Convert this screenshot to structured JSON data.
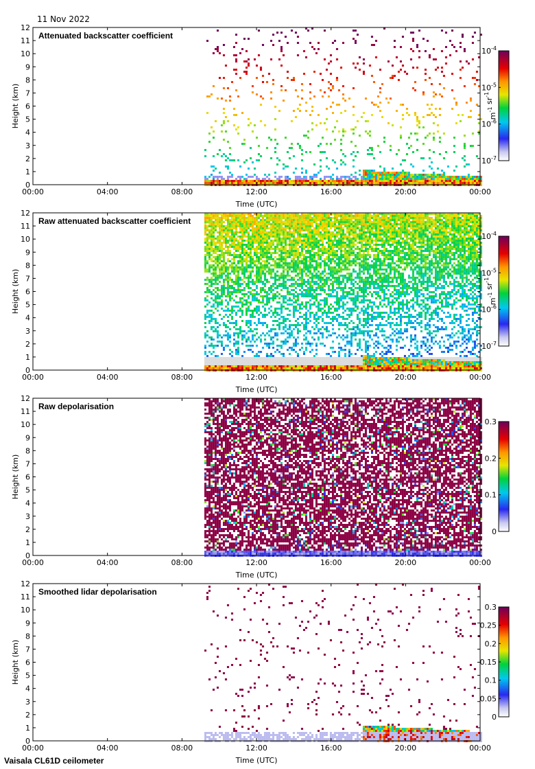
{
  "date": "11 Nov 2022",
  "instrument": "Vaisala CL61D ceilometer",
  "colors": {
    "axis": "#000000",
    "no_data": "#ffffff"
  },
  "chart_data": [
    {
      "type": "heatmap",
      "title": "Attenuated backscatter coefficient",
      "xlabel": "Time (UTC)",
      "ylabel": "Height (km)",
      "xticks": [
        "00:00",
        "04:00",
        "08:00",
        "12:00",
        "16:00",
        "20:00",
        "00:00"
      ],
      "yticks": [
        "0",
        "1",
        "2",
        "3",
        "4",
        "5",
        "6",
        "7",
        "8",
        "9",
        "10",
        "11",
        "12"
      ],
      "xlim_hours": [
        0,
        24
      ],
      "ylim_km": [
        0,
        12
      ],
      "data_start_hour": 9.2,
      "scale": "log",
      "colorbar": {
        "ticks": [
          "10-7",
          "10-6",
          "10-5",
          "10-4"
        ],
        "unit": "m-1 sr-1"
      },
      "grid": false
    },
    {
      "type": "heatmap",
      "title": "Raw attenuated backscatter coefficient",
      "xlabel": "Time (UTC)",
      "ylabel": "Height (km)",
      "xticks": [
        "00:00",
        "04:00",
        "08:00",
        "12:00",
        "16:00",
        "20:00",
        "00:00"
      ],
      "yticks": [
        "0",
        "1",
        "2",
        "3",
        "4",
        "5",
        "6",
        "7",
        "8",
        "9",
        "10",
        "11",
        "12"
      ],
      "xlim_hours": [
        0,
        24
      ],
      "ylim_km": [
        0,
        12
      ],
      "data_start_hour": 9.2,
      "scale": "log",
      "colorbar": {
        "ticks": [
          "10-7",
          "10-6",
          "10-5",
          "10-4"
        ],
        "unit": "m-1 sr-1"
      },
      "grid": false
    },
    {
      "type": "heatmap",
      "title": "Raw depolarisation",
      "xlabel": "Time (UTC)",
      "ylabel": "Height (km)",
      "xticks": [
        "00:00",
        "04:00",
        "08:00",
        "12:00",
        "16:00",
        "20:00",
        "00:00"
      ],
      "yticks": [
        "0",
        "1",
        "2",
        "3",
        "4",
        "5",
        "6",
        "7",
        "8",
        "9",
        "10",
        "11",
        "12"
      ],
      "xlim_hours": [
        0,
        24
      ],
      "ylim_km": [
        0,
        12
      ],
      "data_start_hour": 9.2,
      "scale": "linear",
      "colorbar": {
        "ticks": [
          "0",
          "0.1",
          "0.2",
          "0.3"
        ],
        "unit": ""
      },
      "grid": false
    },
    {
      "type": "heatmap",
      "title": "Smoothed lidar depolarisation",
      "xlabel": "Time (UTC)",
      "ylabel": "Height (km)",
      "xticks": [
        "00:00",
        "04:00",
        "08:00",
        "12:00",
        "16:00",
        "20:00",
        "00:00"
      ],
      "yticks": [
        "0",
        "1",
        "2",
        "3",
        "4",
        "5",
        "6",
        "7",
        "8",
        "9",
        "10",
        "11",
        "12"
      ],
      "xlim_hours": [
        0,
        24
      ],
      "ylim_km": [
        0,
        12
      ],
      "data_start_hour": 9.2,
      "scale": "linear",
      "colorbar": {
        "ticks": [
          "0",
          "0.05",
          "0.1",
          "0.15",
          "0.2",
          "0.25",
          "0.3"
        ],
        "unit": ""
      },
      "grid": false
    }
  ]
}
